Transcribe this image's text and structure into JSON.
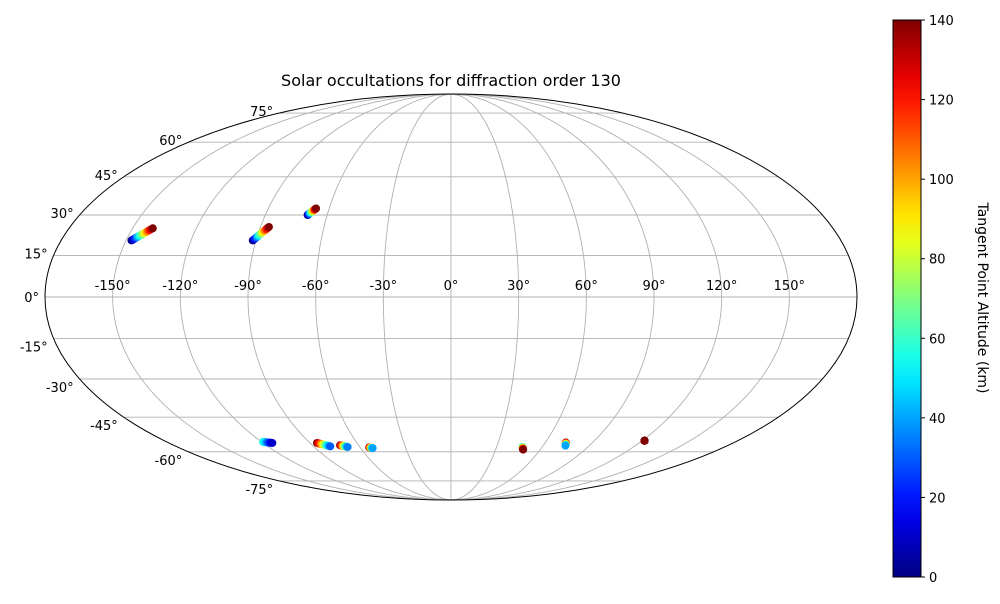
{
  "chart_data": {
    "type": "scatter",
    "projection": "mollweide",
    "title": "Solar occultations for diffraction order 130",
    "x_ticks": [
      "-150°",
      "-120°",
      "-90°",
      "-60°",
      "-30°",
      "0°",
      "30°",
      "60°",
      "90°",
      "120°",
      "150°"
    ],
    "x_tick_values": [
      -150,
      -120,
      -90,
      -60,
      -30,
      0,
      30,
      60,
      90,
      120,
      150
    ],
    "y_ticks": [
      "75°",
      "60°",
      "45°",
      "30°",
      "15°",
      "0°",
      "-15°",
      "-30°",
      "-45°",
      "-60°",
      "-75°"
    ],
    "y_tick_values": [
      75,
      60,
      45,
      30,
      15,
      0,
      -15,
      -30,
      -45,
      -60,
      -75
    ],
    "xlim": [
      -180,
      180
    ],
    "ylim": [
      -90,
      90
    ],
    "grid": true,
    "colorbar": {
      "label": "Tangent Point Altitude (km)",
      "range": [
        0,
        140
      ],
      "ticks": [
        "0",
        "20",
        "40",
        "60",
        "80",
        "100",
        "120",
        "140"
      ],
      "tick_values": [
        0,
        20,
        40,
        60,
        80,
        100,
        120,
        140
      ],
      "colormap": "jet"
    },
    "tracks": [
      {
        "lon_start": -147.5,
        "lat_start": 20.5,
        "lon_end": -140.5,
        "lat_end": 25.0,
        "alt_start": 0,
        "alt_end": 140
      },
      {
        "lon_start": -91.5,
        "lat_start": 20.5,
        "lon_end": -86.0,
        "lat_end": 25.5,
        "alt_start": 0,
        "alt_end": 140
      },
      {
        "lon_start": -69.5,
        "lat_start": 30.0,
        "lon_end": -66.5,
        "lat_end": 32.5,
        "alt_start": 0,
        "alt_end": 140
      },
      {
        "lon_start": -119.0,
        "lat_start": -55.5,
        "lon_end": -114.0,
        "lat_end": -56.0,
        "alt_start": 60,
        "alt_end": 10
      },
      {
        "lon_start": -85.5,
        "lat_start": -56.0,
        "lon_end": -79.0,
        "lat_end": -57.5,
        "alt_start": 140,
        "alt_end": 30
      },
      {
        "lon_start": -72.0,
        "lat_start": -57.0,
        "lon_end": -68.0,
        "lat_end": -57.8,
        "alt_start": 140,
        "alt_end": 35
      },
      {
        "lon_start": -54.0,
        "lat_start": -58.0,
        "lon_end": -52.0,
        "lat_end": -58.3,
        "alt_start": 140,
        "alt_end": 40
      },
      {
        "lon_start": 47.0,
        "lat_start": -57.8,
        "lon_end": 48.5,
        "lat_end": -59.0,
        "alt_start": 50,
        "alt_end": 140
      },
      {
        "lon_start": 73.0,
        "lat_start": -55.8,
        "lon_end": 74.5,
        "lat_end": -57.2,
        "alt_start": 140,
        "alt_end": 40
      },
      {
        "lon_start": 121.5,
        "lat_start": -55.0,
        "lon_end": 121.5,
        "lat_end": -55.0,
        "alt_start": 140,
        "alt_end": 140
      }
    ]
  }
}
